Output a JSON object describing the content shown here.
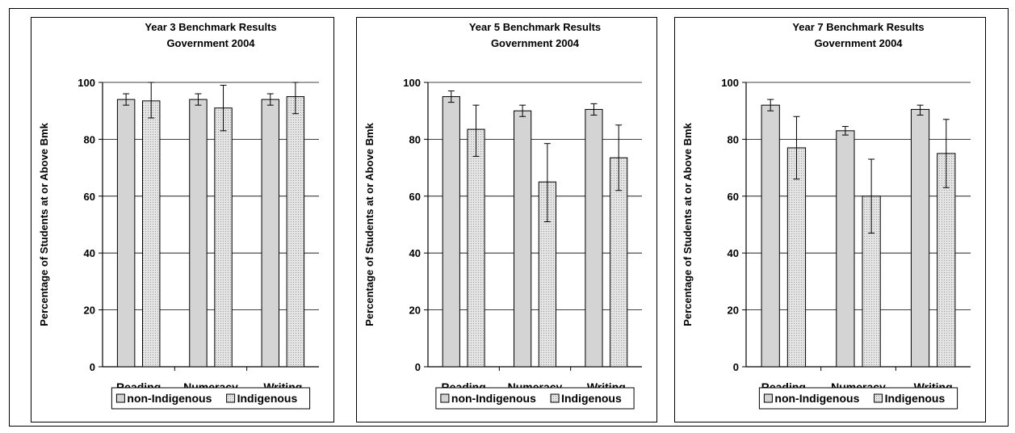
{
  "chart_data": [
    {
      "type": "bar",
      "title_lines": [
        "Year 3 Benchmark Results",
        "Government 2004"
      ],
      "ylabel": "Percentage of Students at or Above Bmk",
      "xlabel": "",
      "ylim": [
        0,
        100
      ],
      "yticks": [
        0,
        20,
        40,
        60,
        80,
        100
      ],
      "grid": true,
      "legend_position": "bottom",
      "categories": [
        "Reading",
        "Numeracy",
        "Writing"
      ],
      "series": [
        {
          "name": "non-Indigenous",
          "values": [
            94,
            94,
            94
          ],
          "err_low": [
            92,
            92,
            92
          ],
          "err_high": [
            96,
            96,
            96
          ]
        },
        {
          "name": "Indigenous",
          "values": [
            93.5,
            91,
            95
          ],
          "err_low": [
            87.5,
            83,
            89
          ],
          "err_high": [
            100,
            99,
            100
          ]
        }
      ]
    },
    {
      "type": "bar",
      "title_lines": [
        "Year 5 Benchmark Results",
        "Government 2004"
      ],
      "ylabel": "Percentage of Students at or Above Bmk",
      "xlabel": "",
      "ylim": [
        0,
        100
      ],
      "yticks": [
        0,
        20,
        40,
        60,
        80,
        100
      ],
      "grid": true,
      "legend_position": "bottom",
      "categories": [
        "Reading",
        "Numeracy",
        "Writing"
      ],
      "series": [
        {
          "name": "non-Indigenous",
          "values": [
            95,
            90,
            90.5
          ],
          "err_low": [
            93,
            88,
            88.5
          ],
          "err_high": [
            97,
            92,
            92.5
          ]
        },
        {
          "name": "Indigenous",
          "values": [
            83.5,
            65,
            73.5
          ],
          "err_low": [
            74,
            51,
            62
          ],
          "err_high": [
            92,
            78.5,
            85
          ]
        }
      ]
    },
    {
      "type": "bar",
      "title_lines": [
        "Year 7 Benchmark Results",
        "Government 2004"
      ],
      "ylabel": "Percentage of Students at or Above Bmk",
      "xlabel": "",
      "ylim": [
        0,
        100
      ],
      "yticks": [
        0,
        20,
        40,
        60,
        80,
        100
      ],
      "grid": true,
      "legend_position": "bottom",
      "categories": [
        "Reading",
        "Numeracy",
        "Writing"
      ],
      "series": [
        {
          "name": "non-Indigenous",
          "values": [
            92,
            83,
            90.5
          ],
          "err_low": [
            90,
            81.5,
            88.5
          ],
          "err_high": [
            94,
            84.5,
            92
          ]
        },
        {
          "name": "Indigenous",
          "values": [
            77,
            60,
            75
          ],
          "err_low": [
            66,
            47,
            63
          ],
          "err_high": [
            88,
            73,
            87
          ]
        }
      ]
    }
  ],
  "colors": {
    "non_indigenous_fill": "#d4d4d4",
    "indigenous_fill": "#e4e4e4",
    "indigenous_dot": "#9a9a9a",
    "axis": "#000000",
    "gridline": "#000000"
  }
}
